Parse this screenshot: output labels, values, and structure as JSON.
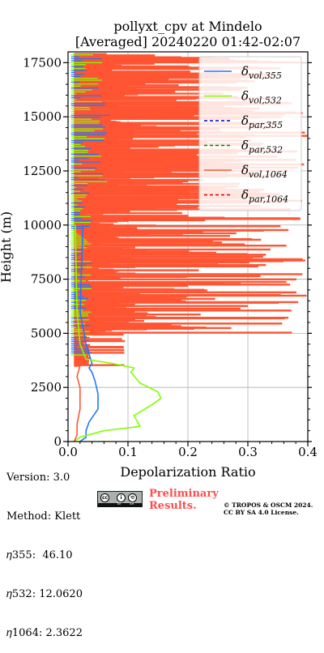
{
  "chart_data": {
    "type": "line",
    "title_line1": "pollyxt_cpv at Mindelo",
    "title_line2": "[Averaged] 20240220 01:42-02:07",
    "xlabel": "Depolarization Ratio",
    "ylabel": "Height (m)",
    "xlim": [
      0.0,
      0.4
    ],
    "ylim": [
      0,
      18000
    ],
    "xticks": [
      "0.0",
      "0.1",
      "0.2",
      "0.3",
      "0.4"
    ],
    "yticks": [
      "0",
      "2500",
      "5000",
      "7500",
      "10000",
      "12500",
      "15000",
      "17500"
    ],
    "grid": true,
    "legend_placement": "top-right",
    "series": [
      {
        "name": "δvol,355",
        "sym": "δ",
        "sub": "vol,355",
        "color": "#1f77ff",
        "dash": "solid",
        "x": [
          0.02,
          0.03,
          0.03,
          0.035,
          0.05,
          0.05,
          0.045,
          0.04,
          0.035,
          0.04,
          0.03,
          0.02,
          0.025
        ],
        "y": [
          0,
          200,
          500,
          900,
          1500,
          2200,
          2800,
          3200,
          3400,
          3600,
          4500,
          6000,
          10000
        ]
      },
      {
        "name": "δvol,532",
        "sym": "δ",
        "sub": "vol,532",
        "color": "#80ff00",
        "dash": "solid",
        "x": [
          0.01,
          0.02,
          0.06,
          0.12,
          0.11,
          0.14,
          0.155,
          0.15,
          0.12,
          0.105,
          0.11,
          0.075,
          0.03,
          0.02,
          0.015,
          0.012
        ],
        "y": [
          0,
          200,
          500,
          700,
          1200,
          1700,
          2000,
          2300,
          2700,
          3200,
          3400,
          3600,
          3800,
          4500,
          6000,
          10000
        ]
      },
      {
        "name": "δpar,355",
        "sym": "δ",
        "sub": "par,355",
        "color": "#0000cc",
        "dash": "dashed",
        "x": [],
        "y": []
      },
      {
        "name": "δpar,532",
        "sym": "δ",
        "sub": "par,532",
        "color": "#008000",
        "dash": "dashed",
        "x": [],
        "y": []
      },
      {
        "name": "δvol,1064",
        "sym": "δ",
        "sub": "vol,1064",
        "color": "#ff5533",
        "dash": "solid",
        "x": [
          0.01,
          0.015,
          0.015,
          0.02,
          0.02,
          0.015,
          0.02
        ],
        "y": [
          0,
          300,
          800,
          1500,
          2500,
          3000,
          3500
        ]
      },
      {
        "name": "δpar,1064",
        "sym": "δ",
        "sub": "par,1064",
        "color": "#cc0000",
        "dash": "dashed",
        "x": [],
        "y": []
      }
    ]
  },
  "footer": {
    "version": "Version: 3.0",
    "method": "Method: Klett",
    "eta355": "𝜂355:  46.10",
    "eta532": "𝜂532: 12.0620",
    "eta1064": "𝜂1064: 2.3622",
    "preliminary_line1": "Preliminary",
    "preliminary_line2": "Results.",
    "copyright_line1": "© TROPOS & OSCM 2024.",
    "copyright_line2": "CC BY SA 4.0 License.",
    "cc_badge": "cc",
    "by_badge": "BY",
    "sa_badge": "SA"
  }
}
